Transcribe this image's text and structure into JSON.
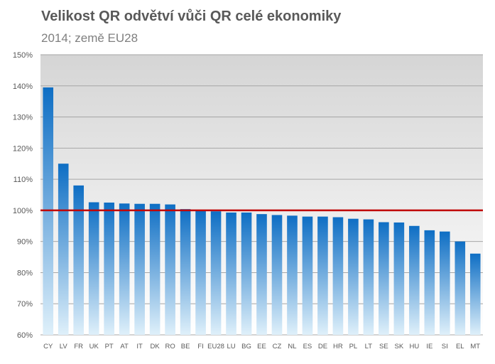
{
  "chart_data": {
    "type": "bar",
    "title": "Velikost QR odvětví vůči QR celé ekonomiky",
    "subtitle": "2014; země EU28",
    "xlabel": "",
    "ylabel": "",
    "ylim": [
      60,
      150
    ],
    "y_ticks": [
      "60%",
      "70%",
      "80%",
      "90%",
      "100%",
      "110%",
      "120%",
      "130%",
      "140%",
      "150%"
    ],
    "y_tick_values": [
      60,
      70,
      80,
      90,
      100,
      110,
      120,
      130,
      140,
      150
    ],
    "categories": [
      "CY",
      "LV",
      "FR",
      "UK",
      "PT",
      "AT",
      "IT",
      "DK",
      "RO",
      "BE",
      "FI",
      "EU28",
      "LU",
      "BG",
      "EE",
      "CZ",
      "NL",
      "ES",
      "DE",
      "HR",
      "PL",
      "LT",
      "SE",
      "SK",
      "HU",
      "IE",
      "SI",
      "EL",
      "MT"
    ],
    "values": [
      139.5,
      115,
      108,
      102.6,
      102.5,
      102.2,
      102.1,
      102.1,
      101.9,
      100.4,
      100.0,
      99.7,
      99.3,
      99.3,
      98.8,
      98.5,
      98.3,
      98.0,
      98.0,
      97.8,
      97.3,
      97.1,
      96.2,
      96.1,
      95.0,
      93.6,
      93.2,
      90.0,
      86.1
    ],
    "reference_line": 100,
    "grid": true,
    "legend": "none",
    "colors": {
      "bar_top": "#0e6ec4",
      "bar_bottom": "#dff0fa",
      "plot_bg_top": "#d5d5d5",
      "plot_bg_bottom": "#ffffff",
      "reference_line": "#c00000",
      "grid": "#a6a6a6"
    }
  }
}
